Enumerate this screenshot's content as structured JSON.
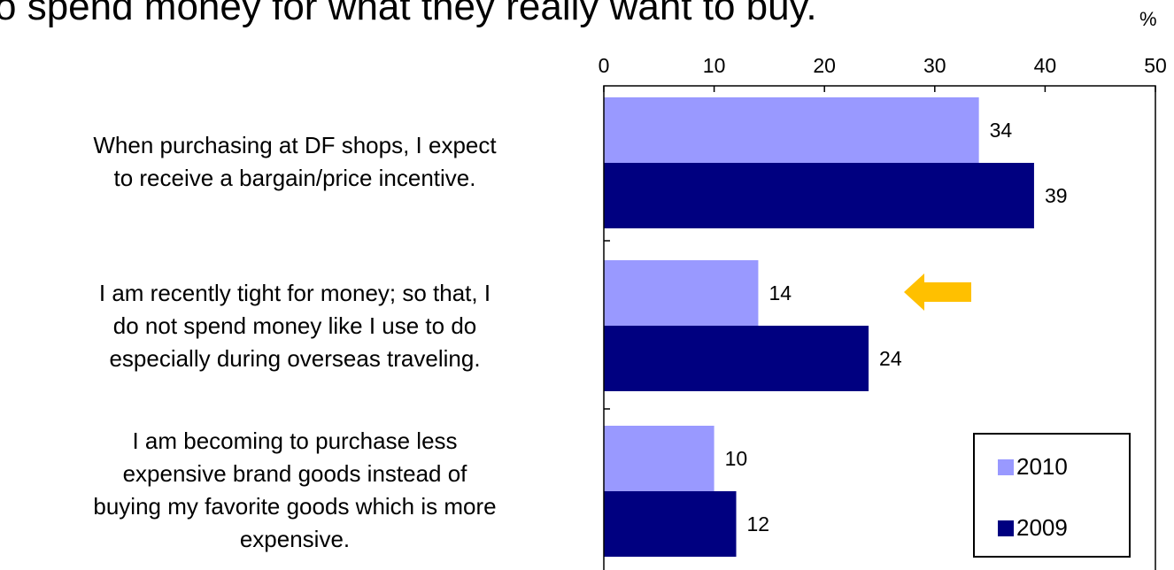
{
  "headline": "o spend money for what they really want to buy.",
  "chart_data": {
    "type": "bar",
    "orientation": "horizontal",
    "unit": "%",
    "xlim": [
      0,
      50
    ],
    "xticks": [
      0,
      10,
      20,
      30,
      40,
      50
    ],
    "categories": [
      "When purchasing at DF shops, I expect to receive a bargain/price incentive.",
      "I am recently tight for money; so that, I do not spend money like I use to do especially during overseas traveling.",
      "I am becoming to purchase less expensive brand goods instead of buying my favorite goods which is more expensive."
    ],
    "category_lines": [
      [
        "When purchasing at DF shops, I expect",
        "to receive a bargain/price incentive."
      ],
      [
        "I am recently tight for money; so that, I",
        "do not spend money like I use to do",
        "especially during overseas traveling."
      ],
      [
        "I am becoming to purchase less",
        "expensive brand goods instead of",
        "buying my favorite goods which is more",
        "expensive."
      ]
    ],
    "series": [
      {
        "name": "2010",
        "color": "#9999ff",
        "values": [
          34,
          14,
          10
        ]
      },
      {
        "name": "2009",
        "color": "#000080",
        "values": [
          39,
          24,
          12
        ]
      }
    ],
    "legend_position": "bottom-right",
    "annotation": {
      "type": "arrow",
      "color": "#ffc000",
      "category": 1
    }
  }
}
